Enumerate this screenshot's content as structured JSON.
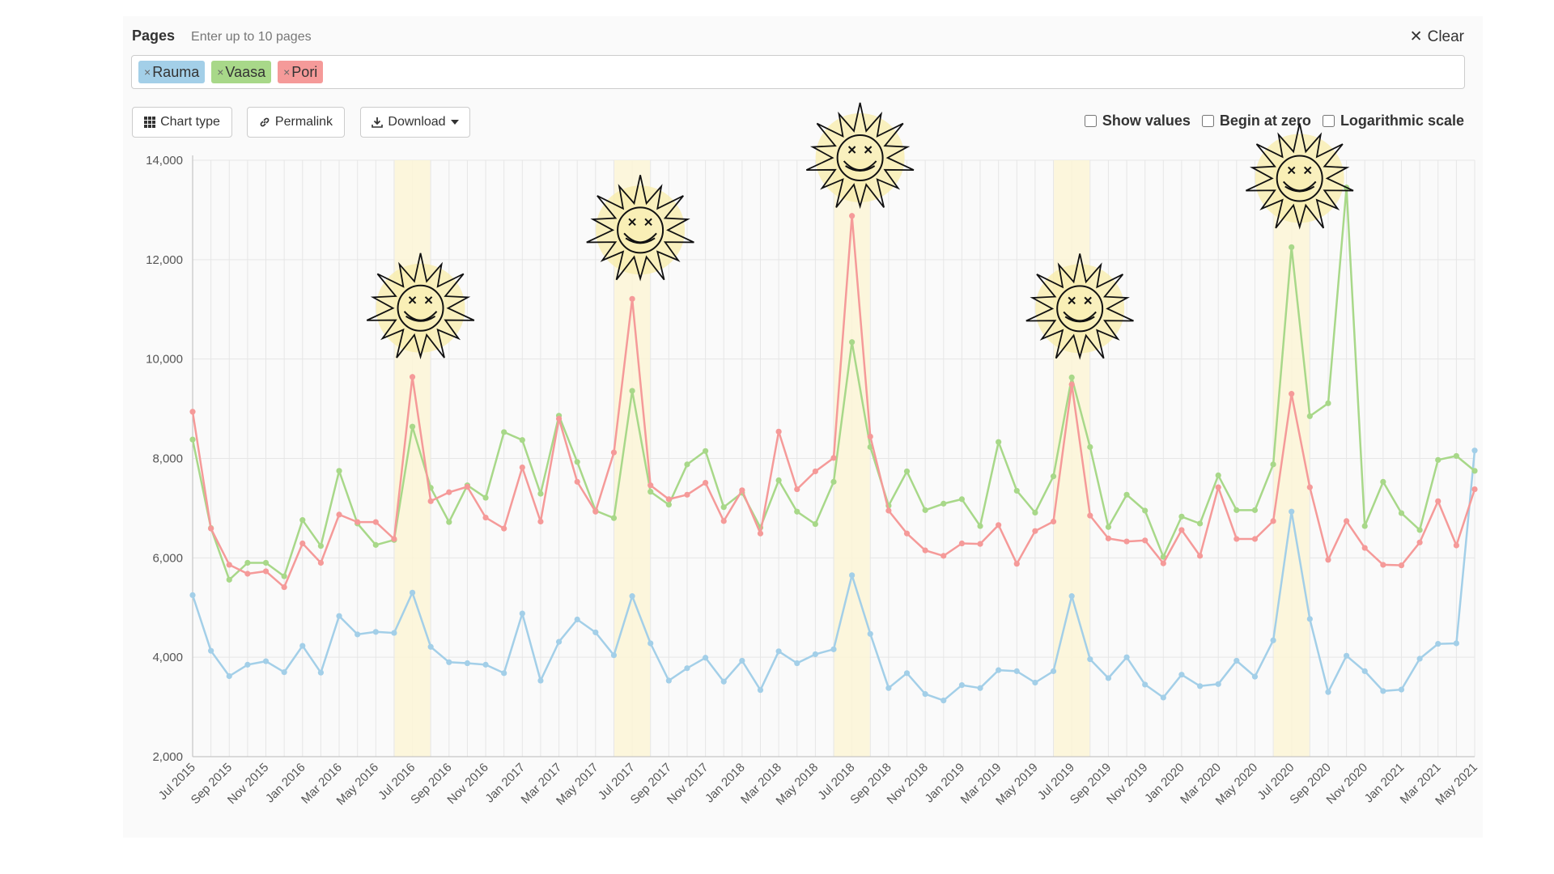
{
  "header": {
    "pages_label": "Pages",
    "pages_hint": "Enter up to 10 pages",
    "clear_label": "Clear"
  },
  "tags": [
    {
      "label": "Rauma",
      "color": "#a3cfe8"
    },
    {
      "label": "Vaasa",
      "color": "#a8d889"
    },
    {
      "label": "Pori",
      "color": "#f59a99"
    }
  ],
  "toolbar": {
    "chart_type_label": "Chart type",
    "permalink_label": "Permalink",
    "download_label": "Download"
  },
  "options": {
    "show_values": "Show values",
    "begin_at_zero": "Begin at zero",
    "log_scale": "Logarithmic scale"
  },
  "colors": {
    "rauma": "#a3cfe8",
    "vaasa": "#a8d889",
    "pori": "#f59a99",
    "highlight": "#fbf4d6",
    "sun": "#f8ecaa"
  },
  "chart_data": {
    "type": "line",
    "title": "",
    "xlabel": "",
    "ylabel": "",
    "ylim": [
      2000,
      14000
    ],
    "yticks": [
      2000,
      4000,
      6000,
      8000,
      10000,
      12000,
      14000
    ],
    "ytick_labels": [
      "2,000",
      "4,000",
      "6,000",
      "8,000",
      "10,000",
      "12,000",
      "14,000"
    ],
    "x": [
      "Jul 2015",
      "Aug 2015",
      "Sep 2015",
      "Oct 2015",
      "Nov 2015",
      "Dec 2015",
      "Jan 2016",
      "Feb 2016",
      "Mar 2016",
      "Apr 2016",
      "May 2016",
      "Jun 2016",
      "Jul 2016",
      "Aug 2016",
      "Sep 2016",
      "Oct 2016",
      "Nov 2016",
      "Dec 2016",
      "Jan 2017",
      "Feb 2017",
      "Mar 2017",
      "Apr 2017",
      "May 2017",
      "Jun 2017",
      "Jul 2017",
      "Aug 2017",
      "Sep 2017",
      "Oct 2017",
      "Nov 2017",
      "Dec 2017",
      "Jan 2018",
      "Feb 2018",
      "Mar 2018",
      "Apr 2018",
      "May 2018",
      "Jun 2018",
      "Jul 2018",
      "Aug 2018",
      "Sep 2018",
      "Oct 2018",
      "Nov 2018",
      "Dec 2018",
      "Jan 2019",
      "Feb 2019",
      "Mar 2019",
      "Apr 2019",
      "May 2019",
      "Jun 2019",
      "Jul 2019",
      "Aug 2019",
      "Sep 2019",
      "Oct 2019",
      "Nov 2019",
      "Dec 2019",
      "Jan 2020",
      "Feb 2020",
      "Mar 2020",
      "Apr 2020",
      "May 2020",
      "Jun 2020",
      "Jul 2020",
      "Aug 2020",
      "Sep 2020",
      "Oct 2020",
      "Nov 2020",
      "Dec 2020",
      "Jan 2021",
      "Feb 2021",
      "Mar 2021",
      "Apr 2021",
      "May 2021"
    ],
    "xtick_labels": [
      "Jul 2015",
      "Sep 2015",
      "Nov 2015",
      "Jan 2016",
      "Mar 2016",
      "May 2016",
      "Jul 2016",
      "Sep 2016",
      "Nov 2016",
      "Jan 2017",
      "Mar 2017",
      "May 2017",
      "Jul 2017",
      "Sep 2017",
      "Nov 2017",
      "Jan 2018",
      "Mar 2018",
      "May 2018",
      "Jul 2018",
      "Sep 2018",
      "Nov 2018",
      "Jan 2019",
      "Mar 2019",
      "May 2019",
      "Jul 2019",
      "Sep 2019",
      "Nov 2019",
      "Jan 2020",
      "Mar 2020",
      "May 2020",
      "Jul 2020",
      "Sep 2020",
      "Nov 2020",
      "Jan 2021",
      "Mar 2021",
      "May 2021"
    ],
    "highlight_months": [
      "Jul 2016",
      "Jul 2017",
      "Jul 2018",
      "Jul 2019",
      "Jul 2020"
    ],
    "series": [
      {
        "name": "Rauma",
        "color": "#a3cfe8",
        "values": [
          5250,
          4130,
          3620,
          3850,
          3920,
          3700,
          4230,
          3690,
          4830,
          4460,
          4510,
          4490,
          5300,
          4210,
          3900,
          3880,
          3850,
          3680,
          4880,
          3530,
          4310,
          4760,
          4500,
          4040,
          5230,
          4280,
          3530,
          3780,
          3990,
          3510,
          3930,
          3340,
          4120,
          3880,
          4060,
          4160,
          5650,
          4470,
          3380,
          3680,
          3260,
          3130,
          3440,
          3380,
          3740,
          3720,
          3490,
          3720,
          5230,
          3960,
          3580,
          4000,
          3450,
          3190,
          3650,
          3420,
          3460,
          3930,
          3610,
          4340,
          6930,
          4770,
          3300,
          4030,
          3720,
          3320,
          3350,
          3970,
          4270,
          4280,
          8160
        ]
      },
      {
        "name": "Vaasa",
        "color": "#a8d889",
        "values": [
          8380,
          6600,
          5560,
          5900,
          5900,
          5630,
          6760,
          6240,
          7750,
          6690,
          6260,
          6360,
          8640,
          7410,
          6720,
          7460,
          7210,
          8530,
          8370,
          7290,
          8860,
          7930,
          6950,
          6800,
          9360,
          7330,
          7070,
          7880,
          8150,
          7020,
          7310,
          6610,
          7560,
          6930,
          6680,
          7530,
          10340,
          8230,
          7050,
          7740,
          6960,
          7090,
          7180,
          6640,
          8330,
          7350,
          6910,
          7640,
          9630,
          8230,
          6620,
          7270,
          6950,
          6020,
          6830,
          6690,
          7660,
          6960,
          6960,
          7880,
          12250,
          8850,
          9110,
          13450,
          6640,
          7530,
          6900,
          6560,
          7970,
          8050,
          7750
        ]
      },
      {
        "name": "Pori",
        "color": "#f59a99",
        "values": [
          8940,
          6590,
          5860,
          5680,
          5730,
          5410,
          6290,
          5900,
          6870,
          6720,
          6720,
          6380,
          9640,
          7140,
          7320,
          7430,
          6810,
          6590,
          7820,
          6730,
          8800,
          7530,
          6930,
          8120,
          11210,
          7460,
          7180,
          7270,
          7510,
          6740,
          7360,
          6490,
          8540,
          7380,
          7740,
          8010,
          12880,
          8440,
          6950,
          6490,
          6150,
          6040,
          6290,
          6280,
          6660,
          5880,
          6540,
          6730,
          9490,
          6850,
          6390,
          6330,
          6350,
          5890,
          6560,
          6040,
          7420,
          6380,
          6380,
          6740,
          9300,
          7420,
          5960,
          6740,
          6200,
          5860,
          5850,
          6310,
          7140,
          6250,
          7380
        ]
      }
    ]
  }
}
